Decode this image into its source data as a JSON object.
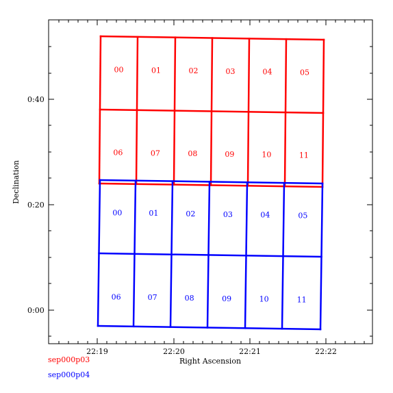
{
  "axes": {
    "xlabel": "Right Ascension",
    "ylabel": "Declination",
    "x_ticks": [
      "22:19",
      "22:20",
      "22:21",
      "22:22"
    ],
    "y_ticks": [
      "0:00",
      "0:20",
      "0:40"
    ]
  },
  "legend": [
    {
      "name": "sep000p03",
      "color": "#ff0000"
    },
    {
      "name": "sep000p04",
      "color": "#0000ff"
    }
  ],
  "grids": [
    {
      "name": "sep000p03",
      "color": "#ff0000",
      "cell_labels": [
        "00",
        "01",
        "02",
        "03",
        "04",
        "05",
        "06",
        "07",
        "08",
        "09",
        "10",
        "11"
      ]
    },
    {
      "name": "sep000p04",
      "color": "#0000ff",
      "cell_labels": [
        "00",
        "01",
        "02",
        "03",
        "04",
        "05",
        "06",
        "07",
        "08",
        "09",
        "10",
        "11"
      ]
    }
  ]
}
